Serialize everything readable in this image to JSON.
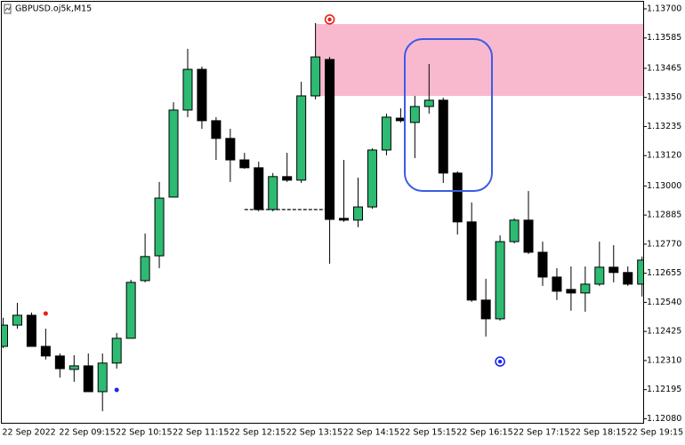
{
  "chart_data": {
    "type": "candlestick",
    "title": "GBPUSD.oj5k,M15",
    "categories": [
      "22 Sep 2022",
      null,
      null,
      null,
      "22 Sep 09:15",
      null,
      null,
      null,
      "22 Sep 10:15",
      null,
      null,
      null,
      "22 Sep 11:15",
      null,
      null,
      null,
      "22 Sep 12:15",
      null,
      null,
      null,
      "22 Sep 13:15",
      null,
      null,
      null,
      "22 Sep 14:15",
      null,
      null,
      null,
      "22 Sep 15:15",
      null,
      null,
      null,
      "22 Sep 16:15",
      null,
      null,
      null,
      "22 Sep 17:15",
      null,
      null,
      null,
      "22 Sep 18:15",
      null,
      null,
      null,
      "22 Sep 19:15",
      null
    ],
    "open": [
      1.12366,
      1.1245,
      1.12489,
      1.12366,
      1.12328,
      1.12275,
      1.12289,
      1.12187,
      1.123,
      1.12398,
      1.12626,
      1.12724,
      1.12956,
      1.133,
      1.13461,
      1.13258,
      1.13188,
      1.13103,
      1.13072,
      1.12907,
      1.13037,
      1.13023,
      1.13356,
      1.135,
      1.12872,
      1.12865,
      1.12917,
      1.13142,
      1.13268,
      1.13251,
      1.13314,
      1.13339,
      1.13051,
      1.12858,
      1.12549,
      1.12475,
      1.1278,
      1.12865,
      1.12738,
      1.1264,
      1.12591,
      1.12577,
      1.12612,
      1.12679,
      1.12658,
      1.12612
    ],
    "high": [
      1.12479,
      1.12538,
      1.125,
      1.12436,
      1.12338,
      1.12331,
      1.12338,
      1.12338,
      1.12419,
      1.12629,
      1.12812,
      1.13016,
      1.13331,
      1.13542,
      1.13472,
      1.13272,
      1.13226,
      1.13131,
      1.13096,
      1.13051,
      1.13131,
      1.13412,
      1.13644,
      1.1351,
      1.13103,
      1.13033,
      1.13149,
      1.13286,
      1.13307,
      1.13356,
      1.13482,
      1.13349,
      1.13058,
      1.12935,
      1.12633,
      1.12805,
      1.12872,
      1.1298,
      1.1278,
      1.12675,
      1.12682,
      1.12682,
      1.1278,
      1.12766,
      1.12682,
      1.12721
    ],
    "low": [
      1.12359,
      1.12436,
      1.12366,
      1.12314,
      1.12243,
      1.12226,
      1.12187,
      1.1211,
      1.12278,
      1.12398,
      1.12619,
      1.12675,
      1.12956,
      1.13272,
      1.13226,
      1.13103,
      1.13016,
      1.13068,
      1.129,
      1.129,
      1.13016,
      1.13012,
      1.13342,
      1.12693,
      1.12858,
      1.12837,
      1.1291,
      1.13121,
      1.13251,
      1.1311,
      1.13286,
      1.13012,
      1.12808,
      1.12542,
      1.12405,
      1.12468,
      1.12773,
      1.12731,
      1.12605,
      1.12549,
      1.12507,
      1.12503,
      1.12605,
      1.12619,
      1.12605,
      1.12563
    ],
    "close": [
      1.1245,
      1.12489,
      1.12366,
      1.12328,
      1.12278,
      1.12289,
      1.12187,
      1.123,
      1.12398,
      1.12619,
      1.12721,
      1.12952,
      1.133,
      1.13461,
      1.13258,
      1.13188,
      1.13103,
      1.13072,
      1.12907,
      1.13037,
      1.13023,
      1.13356,
      1.1351,
      1.12868,
      1.12865,
      1.12917,
      1.13142,
      1.13272,
      1.13258,
      1.13314,
      1.13339,
      1.13051,
      1.12858,
      1.12549,
      1.12475,
      1.1278,
      1.12865,
      1.12738,
      1.1264,
      1.12584,
      1.12577,
      1.12612,
      1.12679,
      1.12658,
      1.12612,
      1.12707
    ],
    "up_color": "#2dba72",
    "down_color": "#000000",
    "ylim": [
      1.12064,
      1.13728
    ],
    "yticks": [
      {
        "value": 1.137,
        "label": "1.13700"
      },
      {
        "value": 1.13585,
        "label": "1.13585"
      },
      {
        "value": 1.13465,
        "label": "1.13465"
      },
      {
        "value": 1.1335,
        "label": "1.13350"
      },
      {
        "value": 1.13235,
        "label": "1.13235"
      },
      {
        "value": 1.1312,
        "label": "1.13120"
      },
      {
        "value": 1.13,
        "label": "1.13000"
      },
      {
        "value": 1.12885,
        "label": "1.12885"
      },
      {
        "value": 1.1277,
        "label": "1.12770"
      },
      {
        "value": 1.12655,
        "label": "1.12655"
      },
      {
        "value": 1.1254,
        "label": "1.12540"
      },
      {
        "value": 1.12425,
        "label": "1.12425"
      },
      {
        "value": 1.1231,
        "label": "1.12310"
      },
      {
        "value": 1.12195,
        "label": "1.12195"
      },
      {
        "value": 1.1208,
        "label": "1.12080"
      }
    ],
    "zone": {
      "high": 1.1364,
      "low": 1.13356,
      "color": "#f8b9cf"
    },
    "level": {
      "color": "#333333",
      "values": [
        null,
        null,
        null,
        null,
        null,
        null,
        null,
        null,
        null,
        null,
        null,
        null,
        null,
        null,
        null,
        null,
        null,
        1.12907,
        1.12907,
        1.12907,
        1.12907,
        1.12907,
        1.12907,
        1.12907,
        null,
        null,
        null,
        null,
        null,
        null,
        null,
        null,
        null,
        null,
        null,
        null,
        null,
        null,
        null,
        null,
        null,
        null,
        null,
        null,
        null,
        null
      ]
    },
    "markers": [
      {
        "style": "ring",
        "color": "#e8201a",
        "values": [
          null,
          null,
          null,
          null,
          null,
          null,
          null,
          null,
          null,
          null,
          null,
          null,
          null,
          null,
          null,
          null,
          null,
          null,
          null,
          null,
          null,
          null,
          null,
          1.13658,
          null,
          null,
          null,
          null,
          null,
          null,
          null,
          null,
          null,
          null,
          null,
          null,
          null,
          null,
          null,
          null,
          null,
          null,
          null,
          null,
          null,
          null
        ]
      },
      {
        "style": "ring",
        "color": "#1a2ae8",
        "values": [
          null,
          null,
          null,
          null,
          null,
          null,
          null,
          null,
          null,
          null,
          null,
          null,
          null,
          null,
          null,
          null,
          null,
          null,
          null,
          null,
          null,
          null,
          null,
          null,
          null,
          null,
          null,
          null,
          null,
          null,
          null,
          null,
          null,
          null,
          null,
          1.12306,
          null,
          null,
          null,
          null,
          null,
          null,
          null,
          null,
          null,
          null
        ]
      },
      {
        "style": "dot",
        "color": "#e8201a",
        "values": [
          null,
          null,
          null,
          1.12496,
          null,
          null,
          null,
          null,
          null,
          null,
          null,
          null,
          null,
          null,
          null,
          null,
          null,
          null,
          null,
          null,
          null,
          null,
          null,
          null,
          null,
          null,
          null,
          null,
          null,
          null,
          null,
          null,
          null,
          null,
          null,
          null,
          null,
          null,
          null,
          null,
          null,
          null,
          null,
          null,
          null,
          null
        ]
      },
      {
        "style": "dot",
        "color": "#1a2ae8",
        "values": [
          null,
          null,
          null,
          null,
          null,
          null,
          null,
          null,
          1.12194,
          null,
          null,
          null,
          null,
          null,
          null,
          null,
          null,
          null,
          null,
          null,
          null,
          null,
          null,
          null,
          null,
          null,
          null,
          null,
          null,
          null,
          null,
          null,
          null,
          null,
          null,
          null,
          null,
          null,
          null,
          null,
          null,
          null,
          null,
          null,
          null,
          null
        ]
      }
    ]
  }
}
